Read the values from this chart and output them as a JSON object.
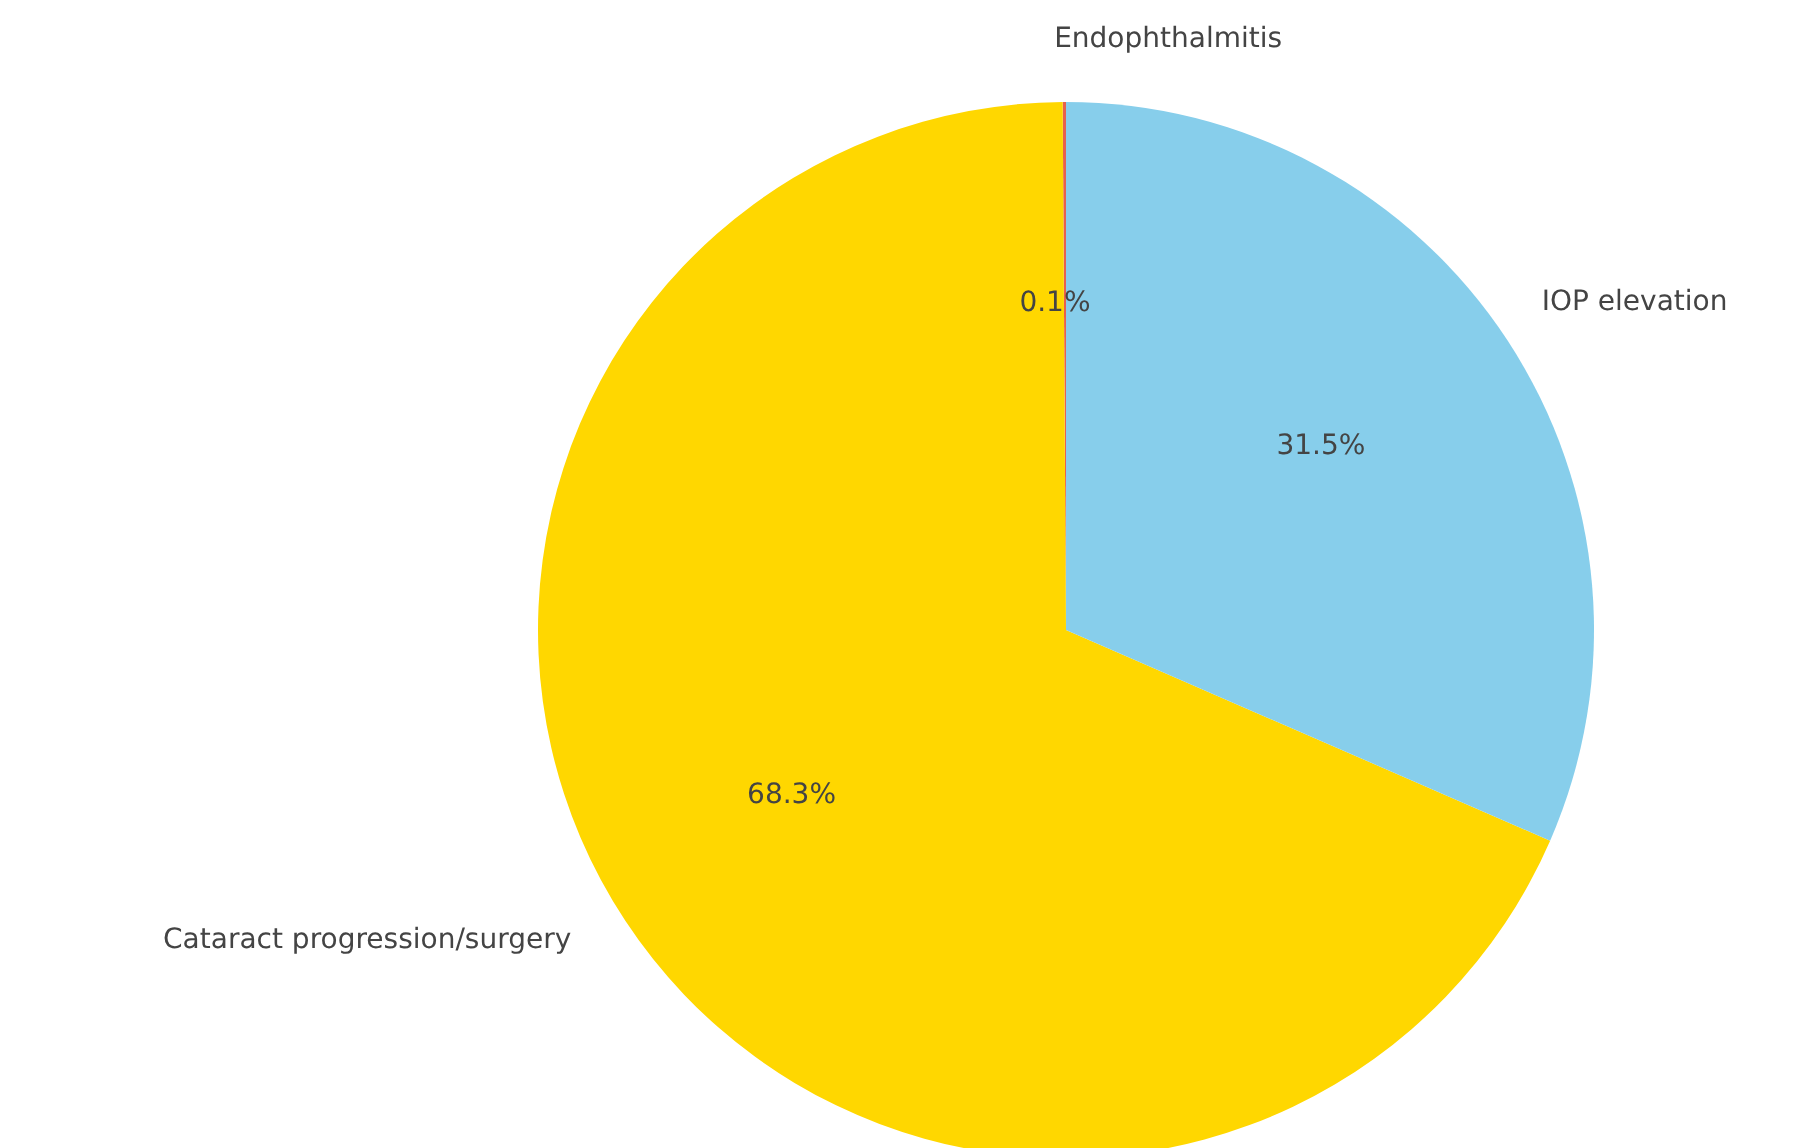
{
  "chart_data": {
    "type": "pie",
    "categories": [
      "Endophthalmitis",
      "Cataract progression/surgery",
      "IOP elevation"
    ],
    "values": [
      0.1,
      68.3,
      31.5
    ],
    "colors": [
      "#e8604c",
      "#ffd700",
      "#87ceeb"
    ],
    "value_labels": [
      "0.1%",
      "68.3%",
      "31.5%"
    ],
    "legend": false
  }
}
